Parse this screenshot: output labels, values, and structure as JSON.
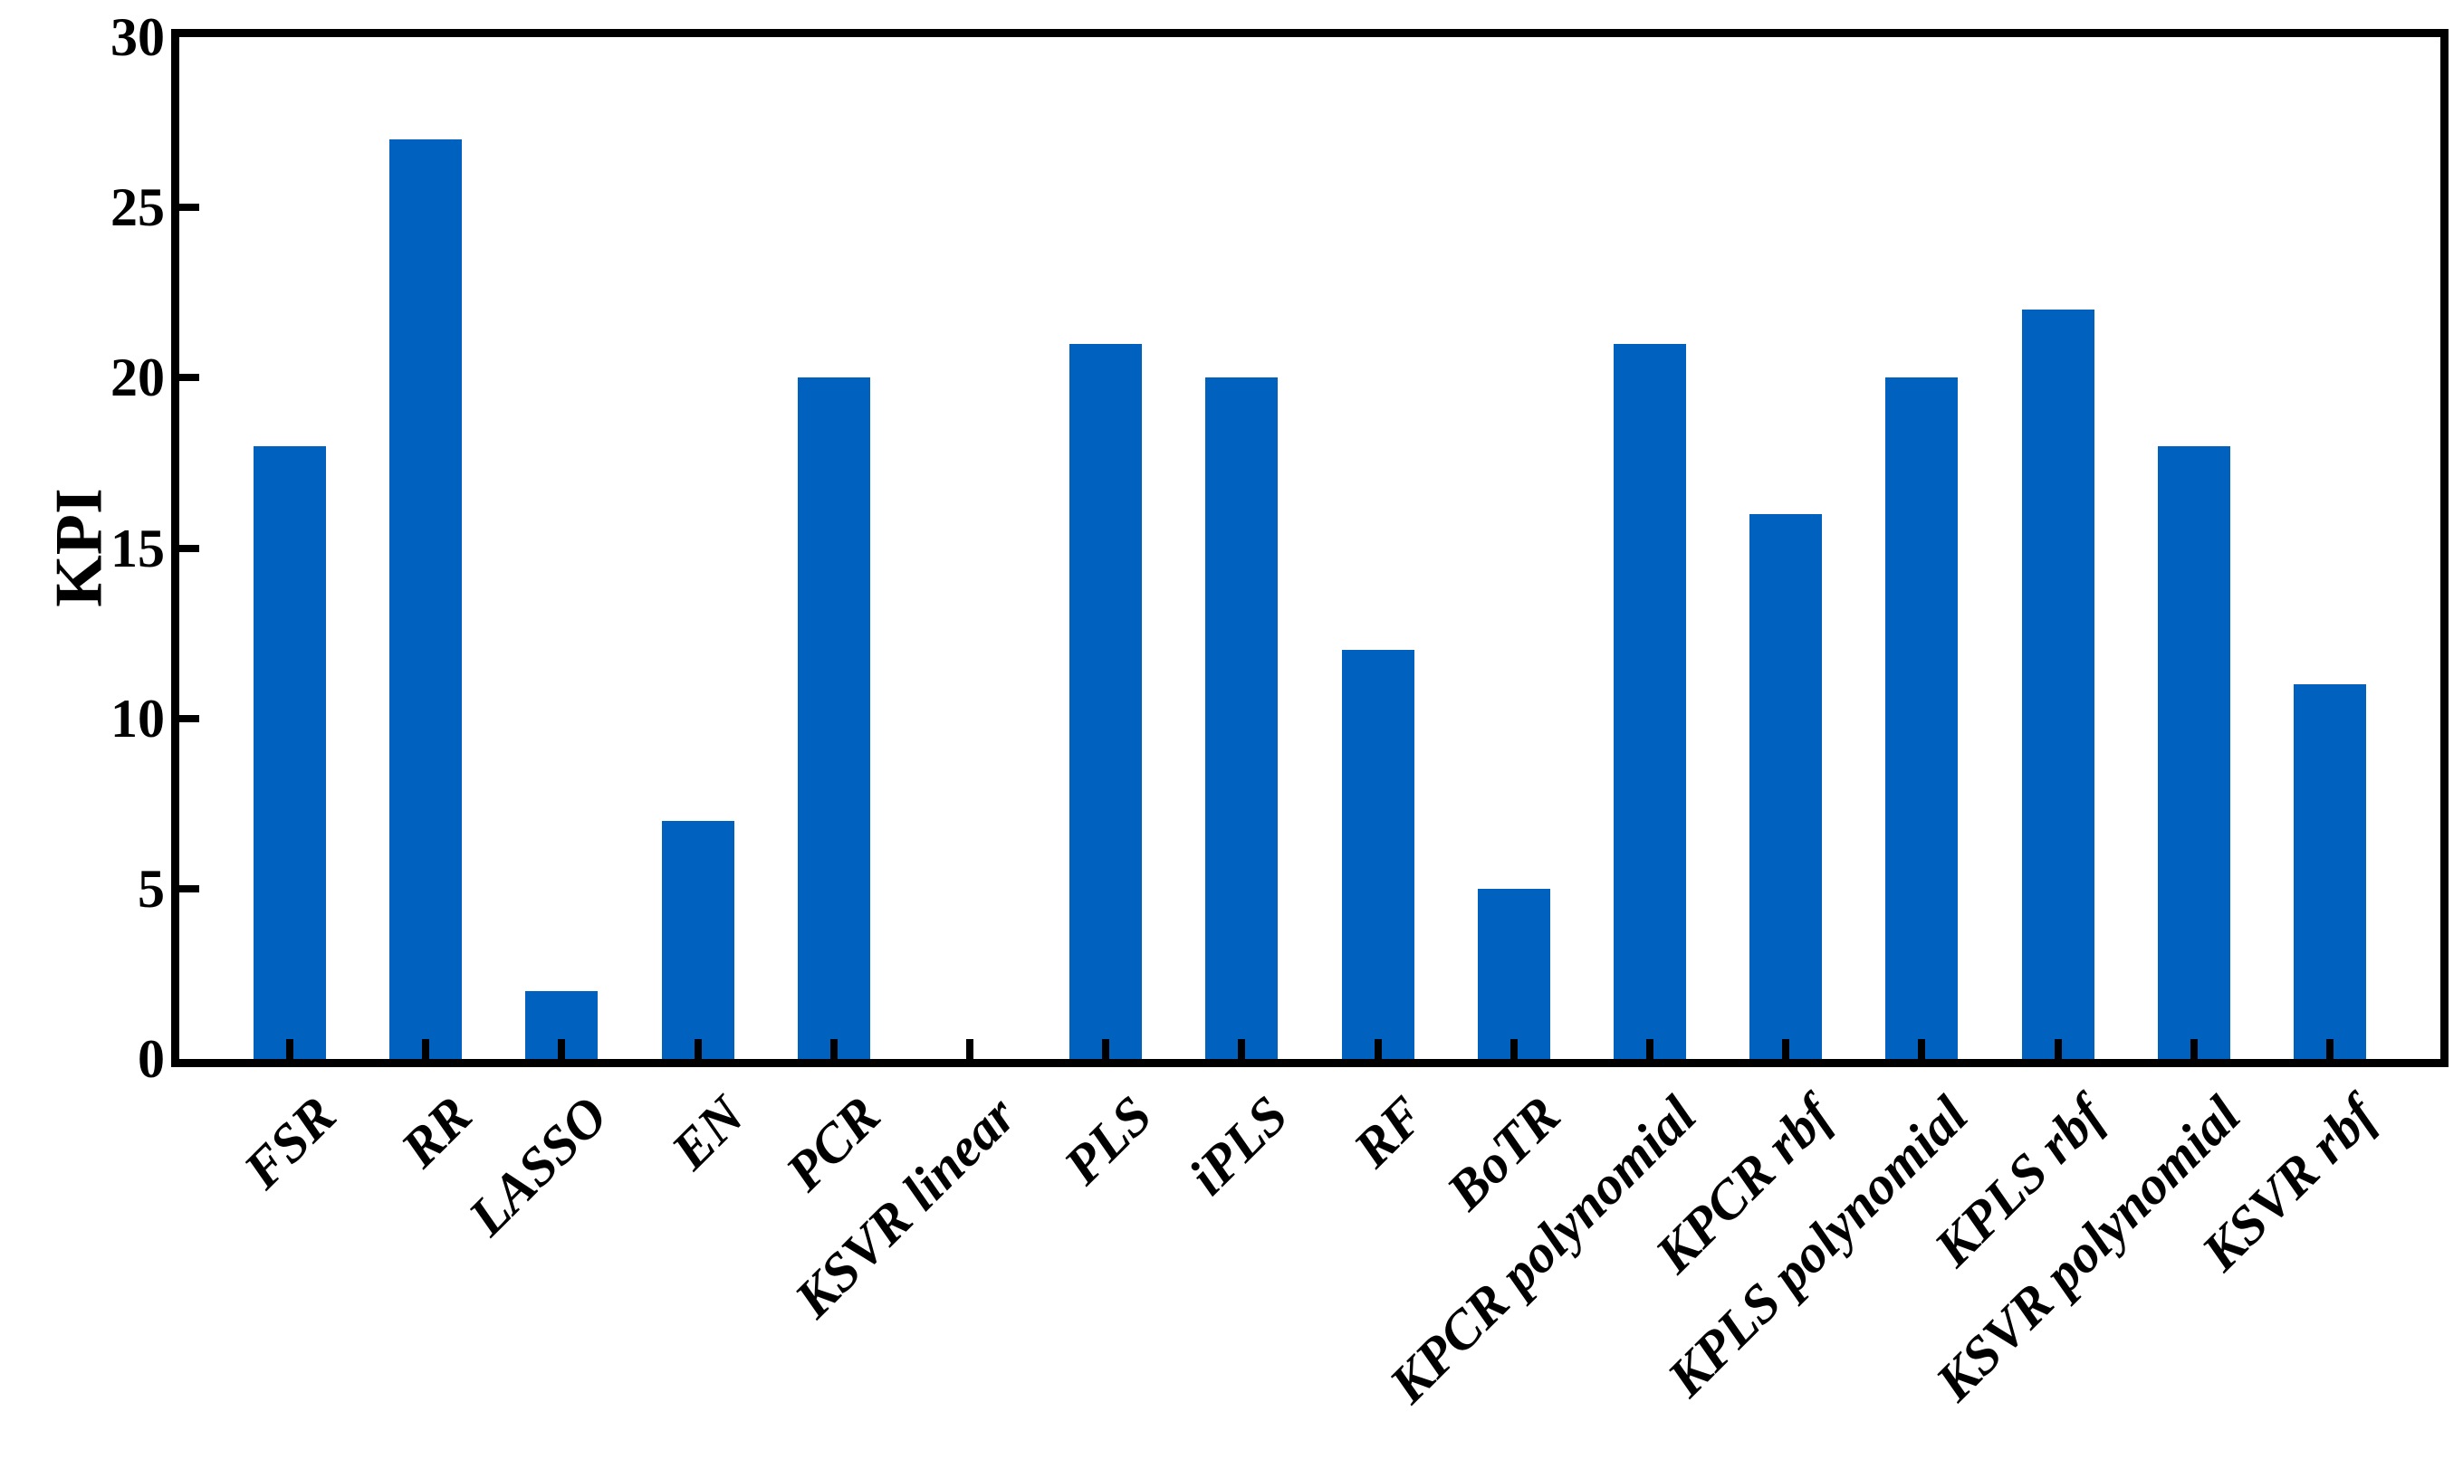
{
  "chart_data": {
    "type": "bar",
    "title": "",
    "xlabel": "",
    "ylabel": "KPI",
    "categories": [
      "FSR",
      "RR",
      "LASSO",
      "EN",
      "PCR",
      "KSVR linear",
      "PLS",
      "iPLS",
      "RF",
      "BoTR",
      "KPCR polynomial",
      "KPCR rbf",
      "KPLS polynomial",
      "KPLS rbf",
      "KSVR polynomial",
      "KSVR rbf"
    ],
    "values": [
      18,
      27,
      2,
      7,
      20,
      0,
      21,
      20,
      12,
      5,
      21,
      16,
      20,
      22,
      18,
      11
    ],
    "ylim": [
      0,
      30
    ],
    "yticks": [
      0,
      5,
      10,
      15,
      20,
      25,
      30
    ],
    "grid": false,
    "legend_position": "none",
    "bar_color": "#0061BE",
    "axis_color": "#000000",
    "background_color": "#FFFFFF"
  }
}
